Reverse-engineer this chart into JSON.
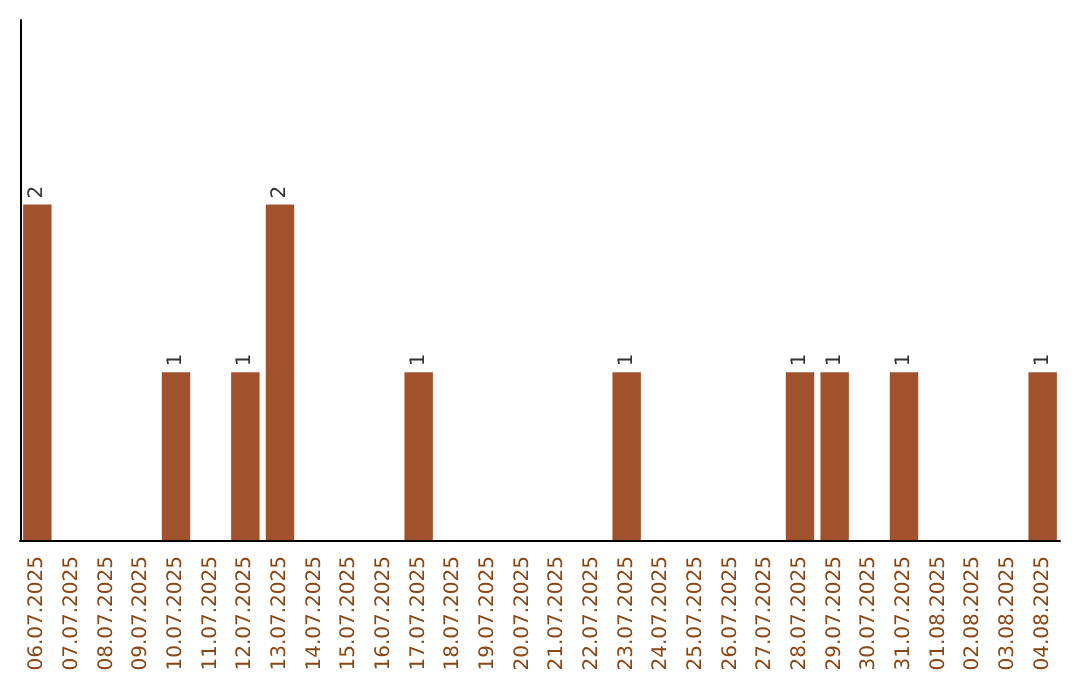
{
  "chart_data": {
    "type": "bar",
    "categories": [
      "06.07.2025",
      "07.07.2025",
      "08.07.2025",
      "09.07.2025",
      "10.07.2025",
      "11.07.2025",
      "12.07.2025",
      "13.07.2025",
      "14.07.2025",
      "15.07.2025",
      "16.07.2025",
      "17.07.2025",
      "18.07.2025",
      "19.07.2025",
      "20.07.2025",
      "21.07.2025",
      "22.07.2025",
      "23.07.2025",
      "24.07.2025",
      "25.07.2025",
      "26.07.2025",
      "27.07.2025",
      "28.07.2025",
      "29.07.2025",
      "30.07.2025",
      "31.07.2025",
      "01.08.2025",
      "02.08.2025",
      "03.08.2025",
      "04.08.2025"
    ],
    "values": [
      2,
      0,
      0,
      0,
      1,
      0,
      1,
      2,
      0,
      0,
      0,
      1,
      0,
      0,
      0,
      0,
      0,
      1,
      0,
      0,
      0,
      0,
      1,
      1,
      0,
      1,
      0,
      0,
      0,
      1
    ],
    "value_labels": [
      "2",
      null,
      null,
      null,
      "1",
      null,
      "1",
      "2",
      null,
      null,
      null,
      "1",
      null,
      null,
      null,
      null,
      null,
      "1",
      null,
      null,
      null,
      null,
      "1",
      "1",
      null,
      "1",
      null,
      null,
      null,
      "1"
    ],
    "color": "#a0522d",
    "ylim": [
      0,
      3.1
    ],
    "tick_labels": "x"
  }
}
